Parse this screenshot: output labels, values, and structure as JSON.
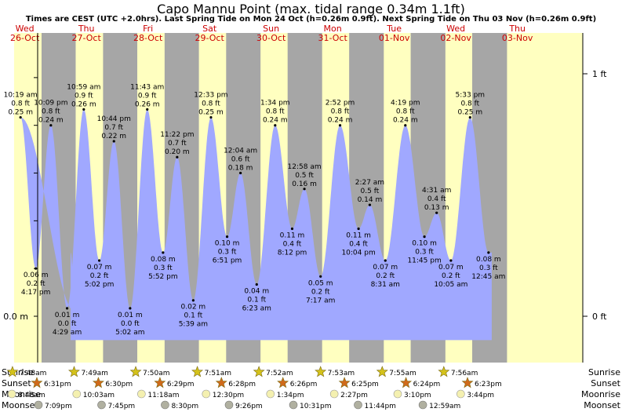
{
  "title": "Capo Mannu Point (max. tidal range 0.34m 1.1ft)",
  "subtitle": "Times are CEST (UTC +2.0hrs). Last Spring Tide on Mon 24 Oct (h=0.26m 0.9ft). Next Spring Tide on Thu 03 Nov (h=0.26m 0.9ft)",
  "colors": {
    "night": "#a6a6a6",
    "day": "#ffffc0",
    "water": "#a0a8ff",
    "day_label": "#cc0000",
    "sun": "#d4c21a",
    "sunset": "#d06a1a",
    "moonrise": "#f4f0b0",
    "moonset": "#b0b0a0"
  },
  "chart_data": {
    "type": "area",
    "y_axis_left": {
      "label": "0.0 m",
      "value": 0.0
    },
    "y_axis_right": [
      {
        "label": "1 ft",
        "value_m": 0.3048
      },
      {
        "label": "0 ft",
        "value_m": 0.0
      }
    ],
    "ylim_m": [
      -0.02,
      0.34
    ],
    "days": [
      {
        "weekday": "Wed",
        "date": "26-Oct"
      },
      {
        "weekday": "Thu",
        "date": "27-Oct"
      },
      {
        "weekday": "Fri",
        "date": "28-Oct"
      },
      {
        "weekday": "Sat",
        "date": "29-Oct"
      },
      {
        "weekday": "Sun",
        "date": "30-Oct"
      },
      {
        "weekday": "Mon",
        "date": "31-Oct"
      },
      {
        "weekday": "Tue",
        "date": "01-Nov"
      },
      {
        "weekday": "Wed",
        "date": "02-Nov"
      },
      {
        "weekday": "Thu",
        "date": "03-Nov"
      }
    ],
    "daylight": [
      {
        "sunrise": "7:48am",
        "sunset": "6:31pm"
      },
      {
        "sunrise": "7:49am",
        "sunset": "6:30pm"
      },
      {
        "sunrise": "7:50am",
        "sunset": "6:29pm"
      },
      {
        "sunrise": "7:51am",
        "sunset": "6:28pm"
      },
      {
        "sunrise": "7:52am",
        "sunset": "6:26pm"
      },
      {
        "sunrise": "7:53am",
        "sunset": "6:25pm"
      },
      {
        "sunrise": "7:55am",
        "sunset": "6:24pm"
      },
      {
        "sunrise": "7:56am",
        "sunset": "6:23pm"
      }
    ],
    "tides": [
      {
        "day": 0,
        "hour": 10.32,
        "type": "high",
        "time": "10:19 am",
        "ft": "0.8 ft",
        "m": "0.25 m",
        "value": 0.25
      },
      {
        "day": 0,
        "hour": 16.28,
        "type": "low",
        "time": "4:17 pm",
        "ft": "0.2 ft",
        "m": "0.06 m",
        "value": 0.06
      },
      {
        "day": 0,
        "hour": 22.15,
        "type": "high",
        "time": "10:09 pm",
        "ft": "0.8 ft",
        "m": "0.24 m",
        "value": 0.24
      },
      {
        "day": 1,
        "hour": 4.48,
        "type": "low",
        "time": "4:29 am",
        "ft": "0.0 ft",
        "m": "0.01 m",
        "value": 0.01
      },
      {
        "day": 1,
        "hour": 10.98,
        "type": "high",
        "time": "10:59 am",
        "ft": "0.9 ft",
        "m": "0.26 m",
        "value": 0.26
      },
      {
        "day": 1,
        "hour": 17.03,
        "type": "low",
        "time": "5:02 pm",
        "ft": "0.2 ft",
        "m": "0.07 m",
        "value": 0.07
      },
      {
        "day": 1,
        "hour": 22.73,
        "type": "high",
        "time": "10:44 pm",
        "ft": "0.7 ft",
        "m": "0.22 m",
        "value": 0.22
      },
      {
        "day": 2,
        "hour": 5.03,
        "type": "low",
        "time": "5:02 am",
        "ft": "0.0 ft",
        "m": "0.01 m",
        "value": 0.01
      },
      {
        "day": 2,
        "hour": 11.72,
        "type": "high",
        "time": "11:43 am",
        "ft": "0.9 ft",
        "m": "0.26 m",
        "value": 0.26
      },
      {
        "day": 2,
        "hour": 17.87,
        "type": "low",
        "time": "5:52 pm",
        "ft": "0.3 ft",
        "m": "0.08 m",
        "value": 0.08
      },
      {
        "day": 2,
        "hour": 23.37,
        "type": "high",
        "time": "11:22 pm",
        "ft": "0.7 ft",
        "m": "0.20 m",
        "value": 0.2
      },
      {
        "day": 3,
        "hour": 5.65,
        "type": "low",
        "time": "5:39 am",
        "ft": "0.1 ft",
        "m": "0.02 m",
        "value": 0.02
      },
      {
        "day": 3,
        "hour": 12.55,
        "type": "high",
        "time": "12:33 pm",
        "ft": "0.8 ft",
        "m": "0.25 m",
        "value": 0.25
      },
      {
        "day": 3,
        "hour": 18.85,
        "type": "low",
        "time": "6:51 pm",
        "ft": "0.3 ft",
        "m": "0.10 m",
        "value": 0.1
      },
      {
        "day": 4,
        "hour": 0.07,
        "type": "high",
        "time": "12:04 am",
        "ft": "0.6 ft",
        "m": "0.18 m",
        "value": 0.18
      },
      {
        "day": 4,
        "hour": 6.38,
        "type": "low",
        "time": "6:23 am",
        "ft": "0.1 ft",
        "m": "0.04 m",
        "value": 0.04
      },
      {
        "day": 4,
        "hour": 13.57,
        "type": "high",
        "time": "1:34 pm",
        "ft": "0.8 ft",
        "m": "0.24 m",
        "value": 0.24
      },
      {
        "day": 4,
        "hour": 20.2,
        "type": "low",
        "time": "8:12 pm",
        "ft": "0.4 ft",
        "m": "0.11 m",
        "value": 0.11
      },
      {
        "day": 5,
        "hour": 0.97,
        "type": "high",
        "time": "12:58 am",
        "ft": "0.5 ft",
        "m": "0.16 m",
        "value": 0.16
      },
      {
        "day": 5,
        "hour": 7.28,
        "type": "low",
        "time": "7:17 am",
        "ft": "0.2 ft",
        "m": "0.05 m",
        "value": 0.05
      },
      {
        "day": 5,
        "hour": 14.87,
        "type": "high",
        "time": "2:52 pm",
        "ft": "0.8 ft",
        "m": "0.24 m",
        "value": 0.24
      },
      {
        "day": 5,
        "hour": 22.07,
        "type": "low",
        "time": "10:04 pm",
        "ft": "0.4 ft",
        "m": "0.11 m",
        "value": 0.11
      },
      {
        "day": 6,
        "hour": 2.45,
        "type": "high",
        "time": "2:27 am",
        "ft": "0.5 ft",
        "m": "0.14 m",
        "value": 0.14
      },
      {
        "day": 6,
        "hour": 8.52,
        "type": "low",
        "time": "8:31 am",
        "ft": "0.2 ft",
        "m": "0.07 m",
        "value": 0.07
      },
      {
        "day": 6,
        "hour": 16.32,
        "type": "high",
        "time": "4:19 pm",
        "ft": "0.8 ft",
        "m": "0.24 m",
        "value": 0.24
      },
      {
        "day": 6,
        "hour": 23.75,
        "type": "low",
        "time": "11:45 pm",
        "ft": "0.3 ft",
        "m": "0.10 m",
        "value": 0.1
      },
      {
        "day": 7,
        "hour": 4.52,
        "type": "high",
        "time": "4:31 am",
        "ft": "0.4 ft",
        "m": "0.13 m",
        "value": 0.13
      },
      {
        "day": 7,
        "hour": 10.08,
        "type": "low",
        "time": "10:05 am",
        "ft": "0.2 ft",
        "m": "0.07 m",
        "value": 0.07
      },
      {
        "day": 7,
        "hour": 17.55,
        "type": "high",
        "time": "5:33 pm",
        "ft": "0.8 ft",
        "m": "0.25 m",
        "value": 0.25
      },
      {
        "day": 8,
        "hour": 0.75,
        "type": "low",
        "time": "12:45 am",
        "ft": "0.3 ft",
        "m": "0.08 m",
        "value": 0.08
      }
    ]
  },
  "bottom_rows": {
    "labels": {
      "sunrise": "Sunrise",
      "sunset": "Sunset",
      "moonrise": "Moonrise",
      "moonset": "Moonset"
    },
    "moonrise": [
      "8:48am",
      "10:03am",
      "11:18am",
      "12:30pm",
      "1:34pm",
      "2:27pm",
      "3:10pm",
      "3:44pm"
    ],
    "moonset": [
      "7:09pm",
      "7:45pm",
      "8:30pm",
      "9:26pm",
      "10:31pm",
      "11:44pm",
      "12:59am"
    ]
  }
}
